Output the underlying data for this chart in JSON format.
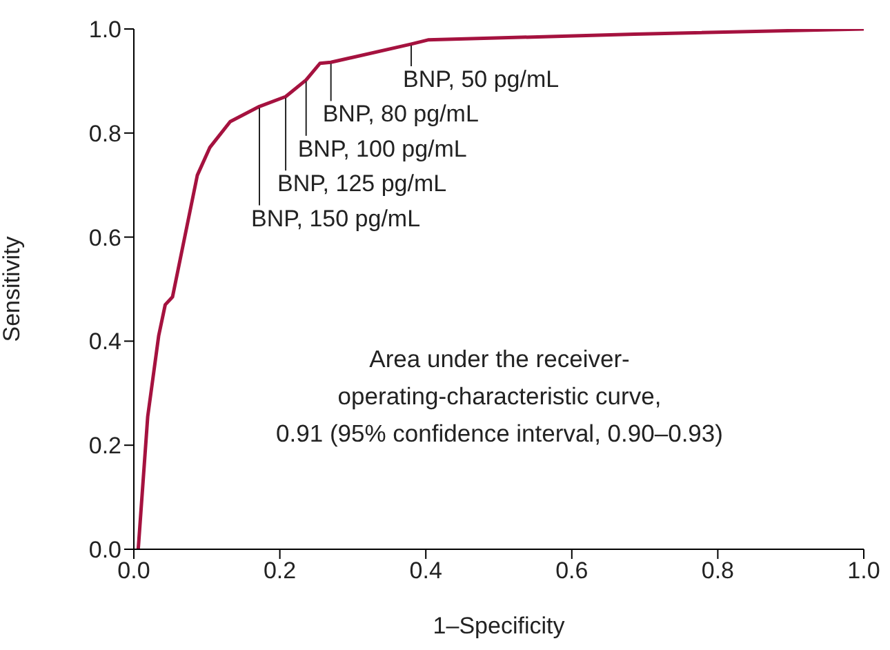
{
  "chart_data": {
    "type": "line",
    "xlabel": "1–Specificity",
    "ylabel": "Sensitivity",
    "x": [
      0.006,
      0.019,
      0.034,
      0.043,
      0.053,
      0.087,
      0.104,
      0.132,
      0.172,
      0.208,
      0.236,
      0.255,
      0.27,
      0.38,
      0.403,
      0.686,
      1.0
    ],
    "series": [
      {
        "color": "#a5123f",
        "values": [
          0,
          0.255,
          0.41,
          0.47,
          0.485,
          0.719,
          0.772,
          0.822,
          0.851,
          0.87,
          0.902,
          0.934,
          0.936,
          0.971,
          0.979,
          0.99,
          1.0
        ]
      }
    ],
    "xlim": [
      0,
      1
    ],
    "ylim": [
      0,
      1
    ],
    "xticks": [
      {
        "value": 0,
        "label": "0.0"
      },
      0.2,
      0.4,
      0.6,
      0.8,
      {
        "value": 1,
        "label": "1.0"
      }
    ],
    "yticks": [
      {
        "value": 0,
        "label": "0.0"
      },
      0.2,
      0.4,
      0.6,
      0.8,
      {
        "value": 1,
        "label": "1.0"
      }
    ],
    "annotations": [
      {
        "text": "BNP, 50 pg/mL",
        "x": 0.38,
        "y": 0.971
      },
      {
        "text": "BNP, 80 pg/mL",
        "x": 0.27,
        "y": 0.936
      },
      {
        "text": "BNP, 100 pg/mL",
        "x": 0.236,
        "y": 0.902
      },
      {
        "text": "BNP, 125 pg/mL",
        "x": 0.208,
        "y": 0.87
      },
      {
        "text": "BNP, 150 pg/mL",
        "x": 0.172,
        "y": 0.851
      },
      "Area under the receiver-\noperating-characteristic curve,\n0.91 (95% confidence interval, 0.90–0.93)"
    ]
  }
}
